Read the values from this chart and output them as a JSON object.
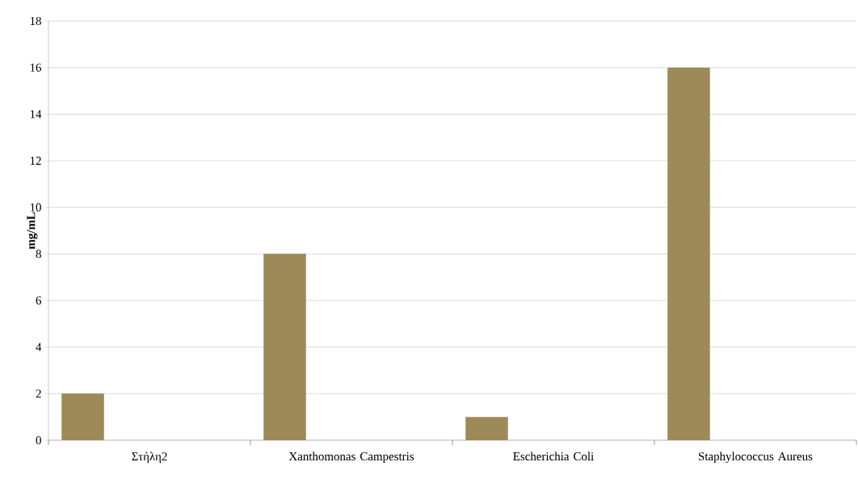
{
  "chart_data": {
    "type": "bar",
    "ylabel": "mg/mL",
    "categories": [
      "Στήλη2",
      "Xanthomonas Campestris",
      "Escherichia Coli",
      "Staphylococcus Aureus"
    ],
    "values": [
      2,
      8,
      1,
      16
    ],
    "color": "#9c8a58",
    "ylim": [
      0,
      18
    ],
    "yticks": [
      0,
      2,
      4,
      6,
      8,
      10,
      12,
      14,
      16,
      18
    ],
    "grid": "y"
  }
}
